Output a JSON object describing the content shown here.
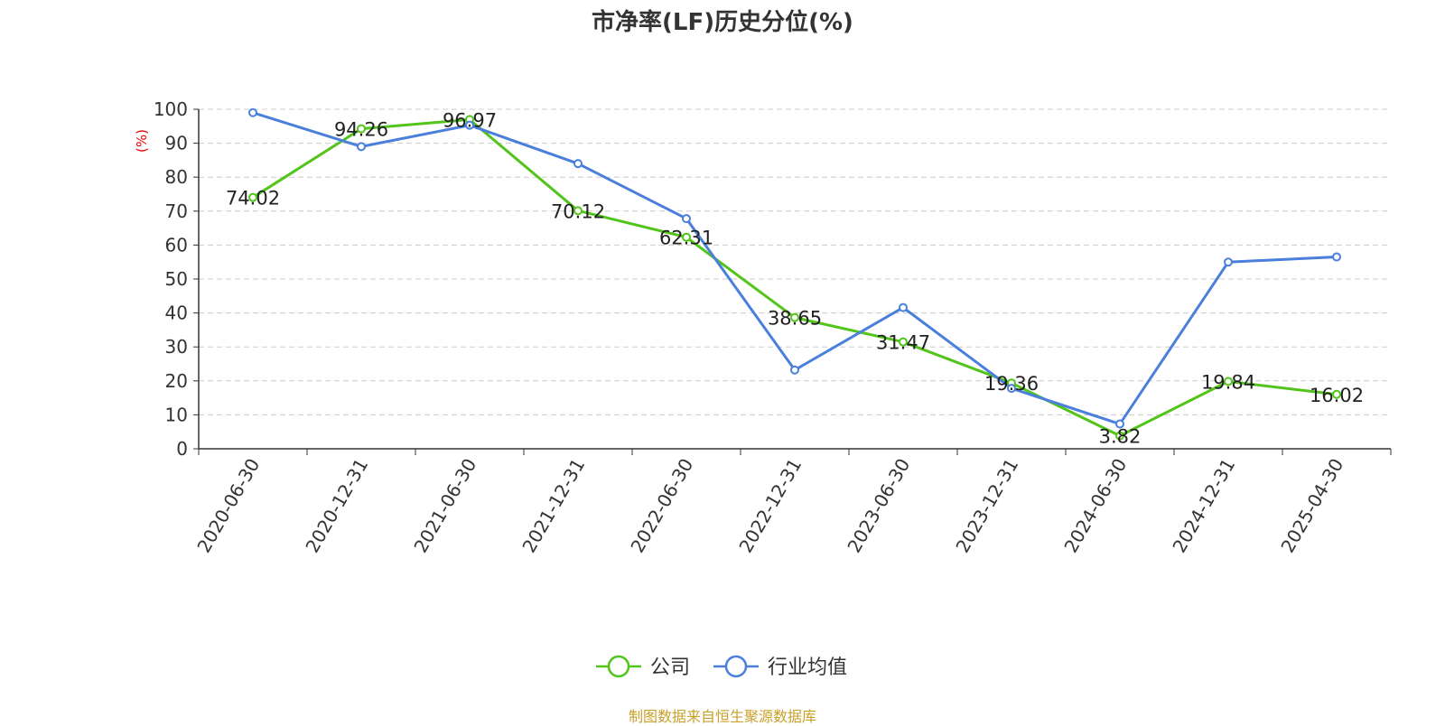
{
  "chart_data": {
    "type": "line",
    "title": "市净率(LF)历史分位(%)",
    "ylabel": "(%)",
    "ylim": [
      0,
      100
    ],
    "yticks": [
      0,
      10,
      20,
      30,
      40,
      50,
      60,
      70,
      80,
      90,
      100
    ],
    "categories": [
      "2020-06-30",
      "2020-12-31",
      "2021-06-30",
      "2021-12-31",
      "2022-06-30",
      "2022-12-31",
      "2023-06-30",
      "2023-12-31",
      "2024-06-30",
      "2024-12-31",
      "2025-04-30"
    ],
    "series": [
      {
        "name": "公司",
        "color": "#52c41a",
        "show_labels": true,
        "values": [
          74.02,
          94.26,
          96.97,
          70.12,
          62.31,
          38.65,
          31.47,
          19.36,
          3.82,
          19.84,
          16.02
        ]
      },
      {
        "name": "行业均值",
        "color": "#4a7fdc",
        "show_labels": false,
        "values": [
          99.0,
          89.0,
          95.3,
          84.0,
          67.8,
          23.2,
          41.6,
          17.8,
          7.3,
          55.0,
          56.5
        ]
      }
    ],
    "grid": true,
    "legend_position": "bottom"
  },
  "footer": {
    "source": "制图数据来自恒生聚源数据库"
  }
}
